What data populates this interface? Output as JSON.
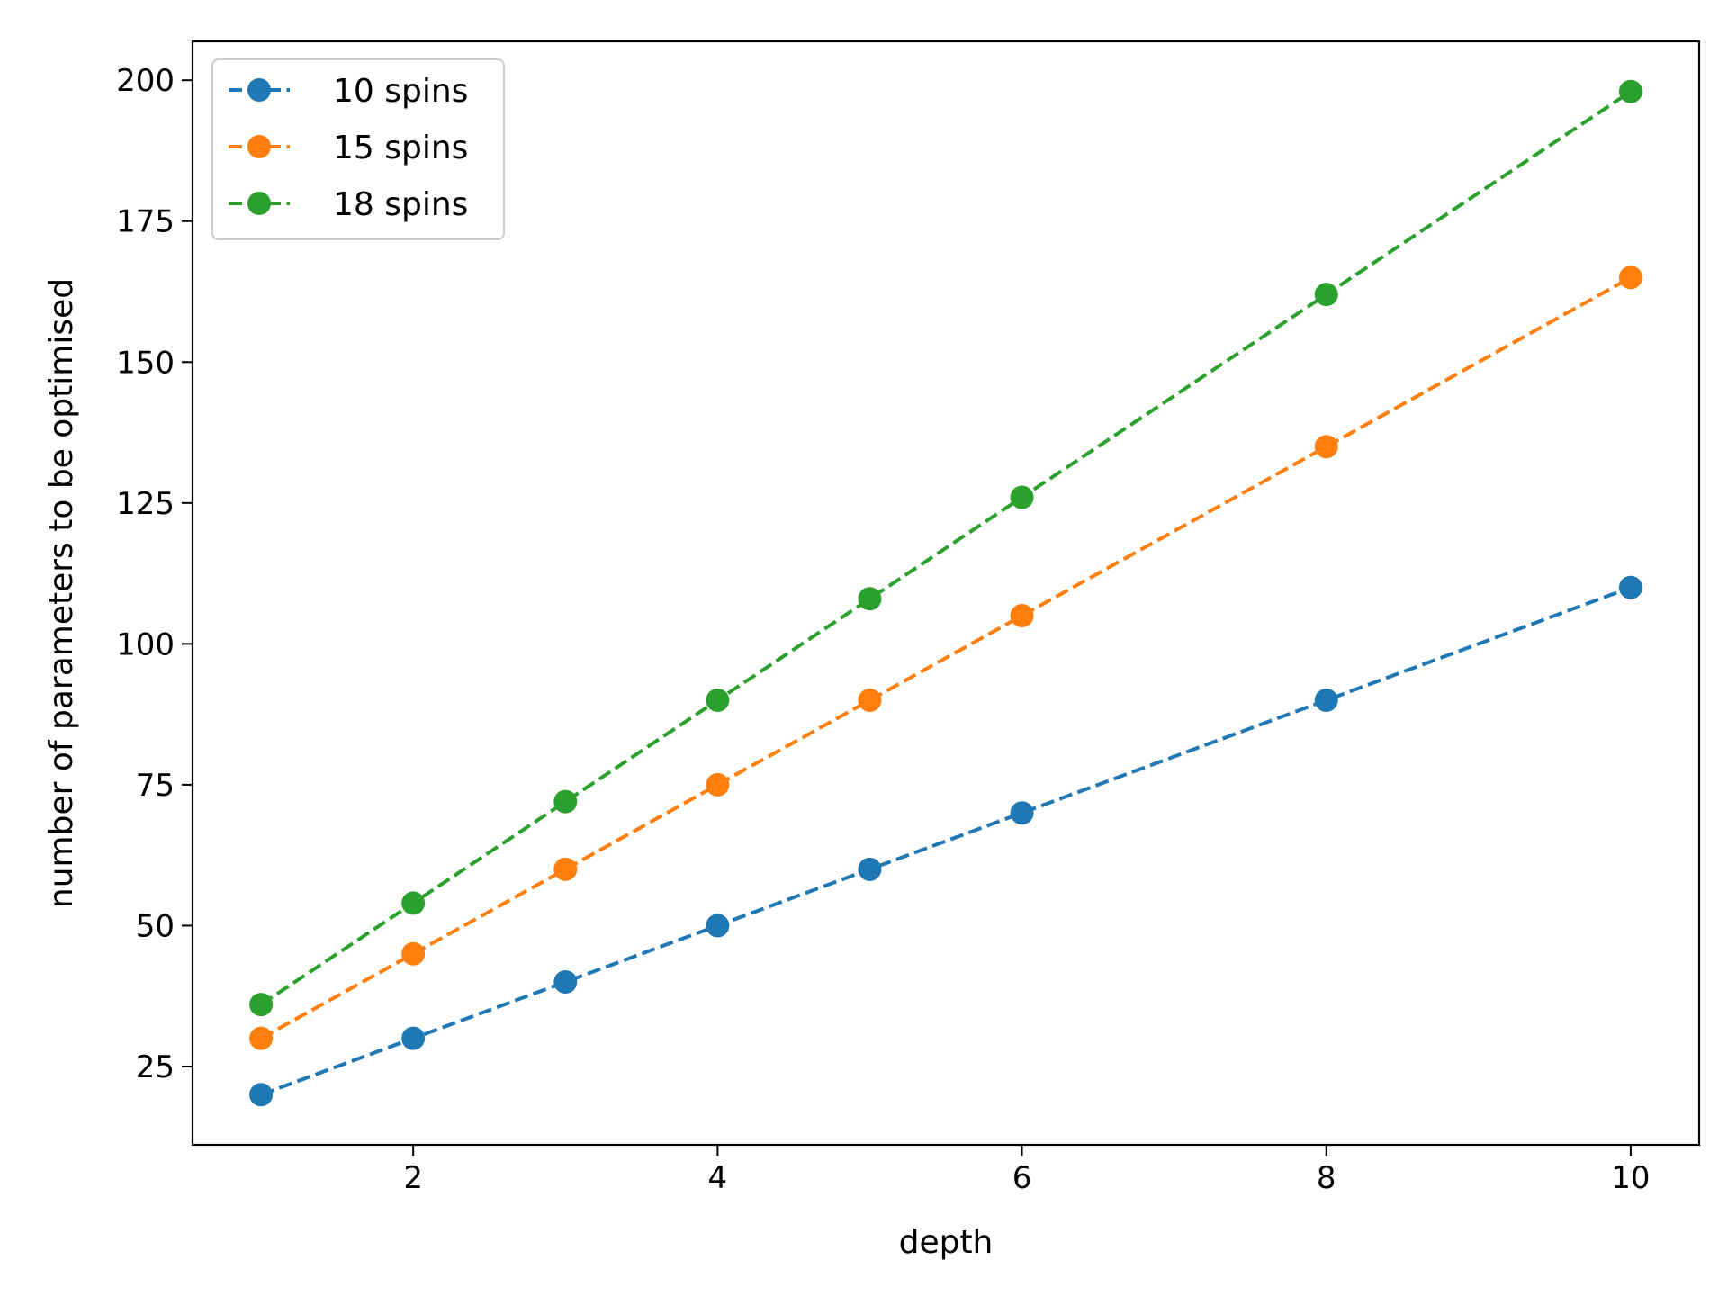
{
  "chart_data": {
    "type": "line",
    "xlabel": "depth",
    "ylabel": "number of parameters to be optimised",
    "xlim": [
      0.55,
      10.45
    ],
    "ylim": [
      11.1,
      206.9
    ],
    "xticks": [
      2,
      4,
      6,
      8,
      10
    ],
    "yticks": [
      25,
      50,
      75,
      100,
      125,
      150,
      175,
      200
    ],
    "grid": false,
    "legend_position": "top-left",
    "x": [
      1,
      2,
      3,
      4,
      5,
      6,
      8,
      10
    ],
    "series": [
      {
        "name": "10 spins",
        "color": "#1f77b4",
        "values": [
          20,
          30,
          40,
          50,
          60,
          70,
          90,
          110
        ]
      },
      {
        "name": "15 spins",
        "color": "#ff7f0e",
        "values": [
          30,
          45,
          60,
          75,
          90,
          105,
          135,
          165
        ]
      },
      {
        "name": "18 spins",
        "color": "#2ca02c",
        "values": [
          36,
          54,
          72,
          90,
          108,
          126,
          162,
          198
        ]
      }
    ]
  }
}
